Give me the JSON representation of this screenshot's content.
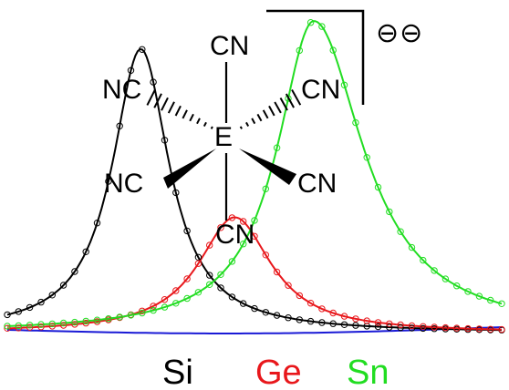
{
  "molecule": {
    "center_atom": "E",
    "ligands": {
      "top": "CN",
      "bottom": "CN",
      "upper_left": "NC",
      "lower_left": "NC",
      "upper_right": "CN",
      "lower_right": "CN"
    },
    "charge": "⊖⊖"
  },
  "spectra_labels": {
    "si": "Si",
    "ge": "Ge",
    "sn": "Sn"
  },
  "colors": {
    "si": "#000000",
    "ge": "#e8171b",
    "sn": "#22dd22",
    "baseline": "#1a1ad6",
    "bonds": "#000000"
  },
  "chart_data": {
    "type": "line",
    "title": "",
    "xlabel": "",
    "ylabel": "",
    "series": [
      {
        "name": "Si",
        "center": 0.27,
        "width": 0.07,
        "height": 0.91
      },
      {
        "name": "Ge",
        "center": 0.46,
        "width": 0.09,
        "height": 0.37
      },
      {
        "name": "Sn",
        "center": 0.62,
        "width": 0.09,
        "height": 1.0
      }
    ]
  }
}
